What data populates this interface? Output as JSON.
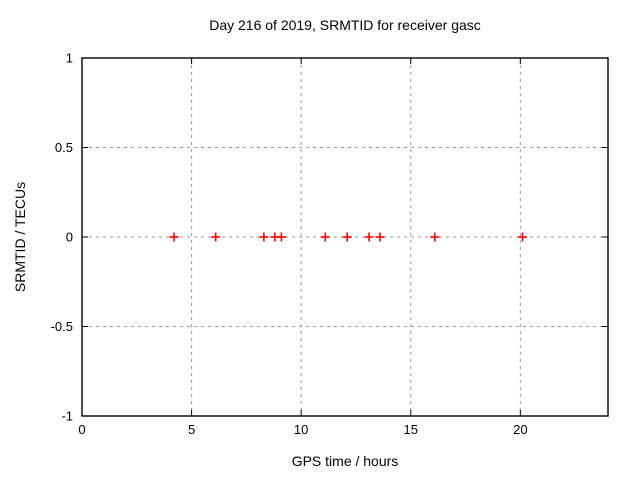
{
  "chart_data": {
    "type": "scatter",
    "title": "Day 216 of 2019, SRMTID for receiver gasc",
    "xlabel": "GPS time / hours",
    "ylabel": "SRMTID / TECUs",
    "xlim": [
      0,
      24
    ],
    "ylim": [
      -1,
      1
    ],
    "x_ticks": [
      0,
      5,
      10,
      15,
      20
    ],
    "x_tick_labels": [
      "0",
      "5",
      "10",
      "15",
      "20"
    ],
    "y_ticks": [
      -1,
      -0.5,
      0,
      0.5,
      1
    ],
    "y_tick_labels": [
      "-1",
      "-0.5",
      "0",
      "0.5",
      "1"
    ],
    "grid": true,
    "grid_style": "dashed",
    "legend": "none",
    "series": [
      {
        "name": "SRMTID",
        "marker": "plus",
        "color": "#ff0000",
        "x": [
          4.2,
          6.1,
          8.3,
          8.8,
          9.1,
          11.1,
          12.1,
          13.1,
          13.6,
          16.1,
          20.1
        ],
        "y": [
          0,
          0,
          0,
          0,
          0,
          0,
          0,
          0,
          0,
          0,
          0
        ]
      }
    ],
    "colors": {
      "background": "#ffffff",
      "border": "#000000",
      "grid": "#9a9a9a",
      "text": "#000000",
      "marker": "#ff0000"
    }
  }
}
